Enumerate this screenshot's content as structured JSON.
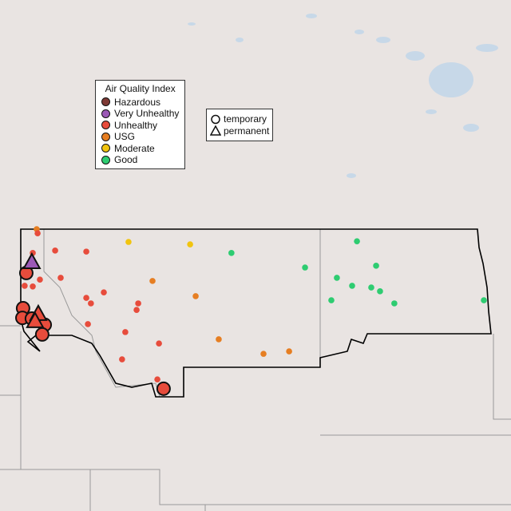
{
  "legend_aqi": {
    "title": "Air Quality Index",
    "items": [
      {
        "label": "Hazardous",
        "color": "#7e3a35"
      },
      {
        "label": "Very Unhealthy",
        "color": "#9b59b6"
      },
      {
        "label": "Unhealthy",
        "color": "#e74c3c"
      },
      {
        "label": "USG",
        "color": "#e67e22"
      },
      {
        "label": "Moderate",
        "color": "#f1c40f"
      },
      {
        "label": "Good",
        "color": "#2ecc71"
      }
    ]
  },
  "legend_type": {
    "items": [
      {
        "label": "temporary",
        "shape": "circle"
      },
      {
        "label": "permanent",
        "shape": "triangle"
      }
    ]
  },
  "stations": [
    {
      "lon": -116.35,
      "lat": 49.0,
      "aqi": "USG",
      "type": "temporary",
      "size": "small"
    },
    {
      "lon": -111.33,
      "lat": 47.5,
      "aqi": "USG",
      "type": "temporary",
      "size": "small"
    },
    {
      "lon": -109.46,
      "lat": 47.06,
      "aqi": "USG",
      "type": "temporary",
      "size": "small"
    },
    {
      "lon": -108.46,
      "lat": 45.81,
      "aqi": "USG",
      "type": "temporary",
      "size": "small"
    },
    {
      "lon": -106.52,
      "lat": 45.39,
      "aqi": "USG",
      "type": "temporary",
      "size": "small"
    },
    {
      "lon": -105.41,
      "lat": 45.46,
      "aqi": "USG",
      "type": "temporary",
      "size": "small"
    },
    {
      "lon": -112.37,
      "lat": 48.63,
      "aqi": "Moderate",
      "type": "temporary",
      "size": "small"
    },
    {
      "lon": -109.7,
      "lat": 48.56,
      "aqi": "Moderate",
      "type": "temporary",
      "size": "small"
    },
    {
      "lon": -107.91,
      "lat": 48.31,
      "aqi": "Good",
      "type": "temporary",
      "size": "small"
    },
    {
      "lon": -104.72,
      "lat": 47.89,
      "aqi": "Good",
      "type": "temporary",
      "size": "small"
    },
    {
      "lon": -102.47,
      "lat": 48.65,
      "aqi": "Good",
      "type": "temporary",
      "size": "small"
    },
    {
      "lon": -101.64,
      "lat": 47.94,
      "aqi": "Good",
      "type": "temporary",
      "size": "small"
    },
    {
      "lon": -103.34,
      "lat": 47.59,
      "aqi": "Good",
      "type": "temporary",
      "size": "small"
    },
    {
      "lon": -102.68,
      "lat": 47.36,
      "aqi": "Good",
      "type": "temporary",
      "size": "small"
    },
    {
      "lon": -101.85,
      "lat": 47.31,
      "aqi": "Good",
      "type": "temporary",
      "size": "small"
    },
    {
      "lon": -101.47,
      "lat": 47.2,
      "aqi": "Good",
      "type": "temporary",
      "size": "small"
    },
    {
      "lon": -103.58,
      "lat": 46.94,
      "aqi": "Good",
      "type": "temporary",
      "size": "small"
    },
    {
      "lon": -100.85,
      "lat": 46.85,
      "aqi": "Good",
      "type": "temporary",
      "size": "small"
    },
    {
      "lon": -96.97,
      "lat": 46.94,
      "aqi": "Good",
      "type": "temporary",
      "size": "small"
    },
    {
      "lon": -116.31,
      "lat": 48.88,
      "aqi": "Unhealthy",
      "type": "temporary",
      "size": "small"
    },
    {
      "lon": -116.52,
      "lat": 48.31,
      "aqi": "Unhealthy",
      "type": "temporary",
      "size": "small"
    },
    {
      "lon": -115.55,
      "lat": 48.38,
      "aqi": "Unhealthy",
      "type": "temporary",
      "size": "small"
    },
    {
      "lon": -114.2,
      "lat": 48.35,
      "aqi": "Unhealthy",
      "type": "temporary",
      "size": "small"
    },
    {
      "lon": -115.31,
      "lat": 47.59,
      "aqi": "Unhealthy",
      "type": "temporary",
      "size": "small"
    },
    {
      "lon": -116.21,
      "lat": 47.54,
      "aqi": "Unhealthy",
      "type": "temporary",
      "size": "small"
    },
    {
      "lon": -116.87,
      "lat": 47.36,
      "aqi": "Unhealthy",
      "type": "temporary",
      "size": "small"
    },
    {
      "lon": -116.52,
      "lat": 47.34,
      "aqi": "Unhealthy",
      "type": "temporary",
      "size": "small"
    },
    {
      "lon": -113.44,
      "lat": 47.17,
      "aqi": "Unhealthy",
      "type": "temporary",
      "size": "small"
    },
    {
      "lon": -114.2,
      "lat": 47.01,
      "aqi": "Unhealthy",
      "type": "temporary",
      "size": "small"
    },
    {
      "lon": -114.0,
      "lat": 46.85,
      "aqi": "Unhealthy",
      "type": "temporary",
      "size": "small"
    },
    {
      "lon": -111.95,
      "lat": 46.85,
      "aqi": "Unhealthy",
      "type": "temporary",
      "size": "small"
    },
    {
      "lon": -112.02,
      "lat": 46.66,
      "aqi": "Unhealthy",
      "type": "temporary",
      "size": "small"
    },
    {
      "lon": -114.13,
      "lat": 46.25,
      "aqi": "Unhealthy",
      "type": "temporary",
      "size": "small"
    },
    {
      "lon": -112.51,
      "lat": 46.02,
      "aqi": "Unhealthy",
      "type": "temporary",
      "size": "small"
    },
    {
      "lon": -111.05,
      "lat": 45.69,
      "aqi": "Unhealthy",
      "type": "temporary",
      "size": "small"
    },
    {
      "lon": -112.65,
      "lat": 45.23,
      "aqi": "Unhealthy",
      "type": "temporary",
      "size": "small"
    },
    {
      "lon": -111.12,
      "lat": 44.65,
      "aqi": "Unhealthy",
      "type": "temporary",
      "size": "small"
    },
    {
      "lon": -116.8,
      "lat": 47.73,
      "aqi": "Unhealthy",
      "type": "temporary",
      "size": "large"
    },
    {
      "lon": -116.94,
      "lat": 46.71,
      "aqi": "Unhealthy",
      "type": "temporary",
      "size": "large"
    },
    {
      "lon": -116.97,
      "lat": 46.43,
      "aqi": "Unhealthy",
      "type": "temporary",
      "size": "large"
    },
    {
      "lon": -116.56,
      "lat": 46.41,
      "aqi": "Unhealthy",
      "type": "temporary",
      "size": "large"
    },
    {
      "lon": -116.0,
      "lat": 46.23,
      "aqi": "Unhealthy",
      "type": "temporary",
      "size": "large"
    },
    {
      "lon": -116.11,
      "lat": 45.95,
      "aqi": "Unhealthy",
      "type": "temporary",
      "size": "large"
    },
    {
      "lon": -110.85,
      "lat": 44.38,
      "aqi": "Unhealthy",
      "type": "temporary",
      "size": "large"
    },
    {
      "lon": -116.56,
      "lat": 48.03,
      "aqi": "Very Unhealthy",
      "type": "permanent",
      "size": "large"
    },
    {
      "lon": -116.28,
      "lat": 46.53,
      "aqi": "Unhealthy",
      "type": "permanent",
      "size": "large"
    },
    {
      "lon": -116.42,
      "lat": 46.32,
      "aqi": "Unhealthy",
      "type": "permanent",
      "size": "large"
    }
  ]
}
